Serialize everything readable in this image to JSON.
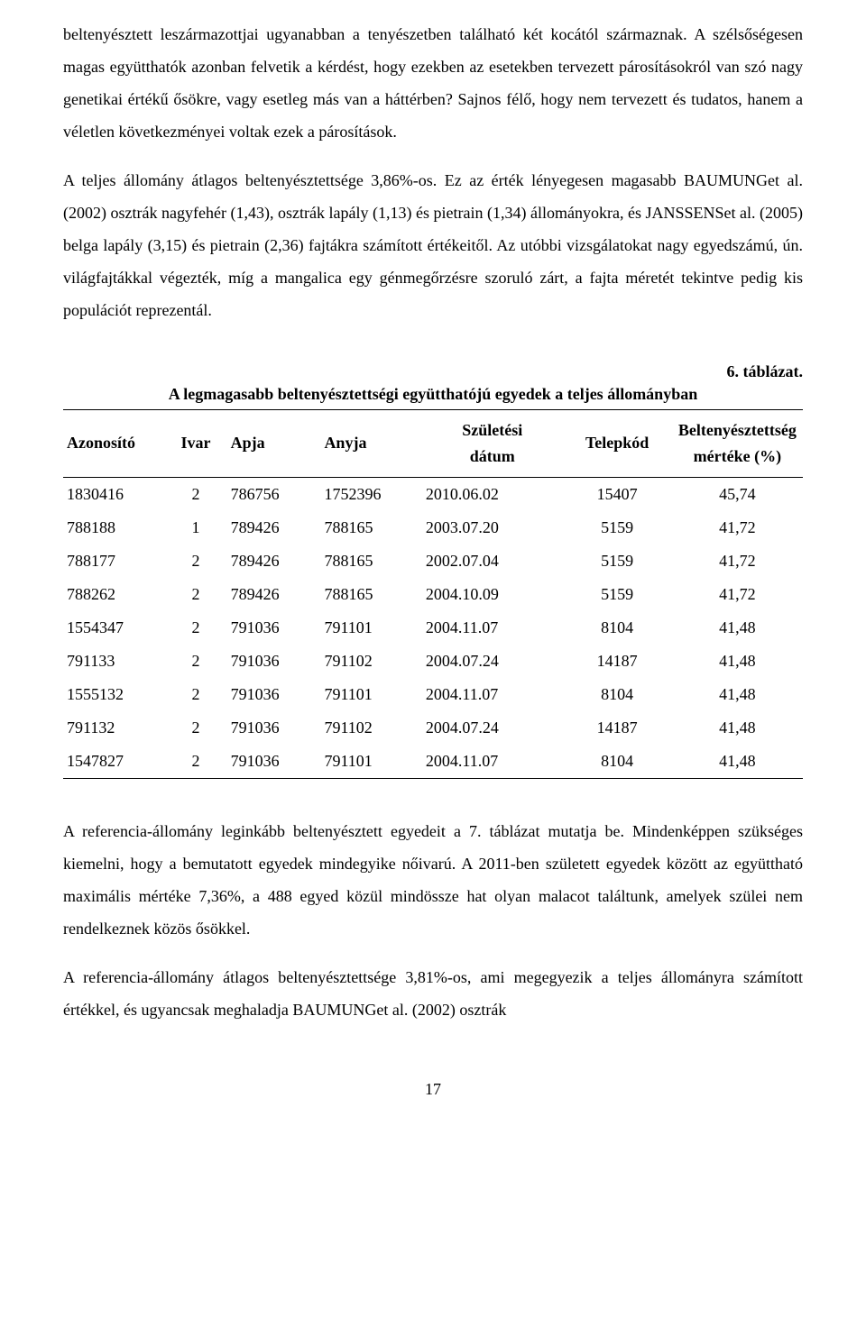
{
  "paragraphs": {
    "p1": "beltenyésztett leszármazottjai ugyanabban a tenyészetben található két kocától származnak. A szélsőségesen magas együtthatók azonban felvetik a kérdést, hogy ezekben az esetekben tervezett párosításokról van szó nagy genetikai értékű ősökre, vagy esetleg más van a háttérben? Sajnos félő, hogy nem tervezett és tudatos, hanem a véletlen következményei voltak ezek a párosítások.",
    "p2": "A teljes állomány átlagos beltenyésztettsége 3,86%-os. Ez az érték lényegesen magasabb BAUMUNGet al. (2002) osztrák nagyfehér (1,43), osztrák lapály (1,13) és pietrain (1,34) állományokra, és JANSSENSet al. (2005) belga lapály (3,15) és pietrain (2,36) fajtákra számított értékeitől. Az utóbbi vizsgálatokat nagy egyedszámú, ún. világfajtákkal végezték, míg a mangalica egy génmegőrzésre szoruló zárt, a fajta méretét tekintve pedig kis populációt reprezentál.",
    "p3": "A referencia-állomány leginkább beltenyésztett egyedeit a 7. táblázat mutatja be. Mindenképpen szükséges kiemelni, hogy a bemutatott egyedek mindegyike nőivarú. A 2011-ben született egyedek között az együttható maximális mértéke 7,36%, a 488 egyed közül mindössze hat olyan malacot találtunk, amelyek szülei nem rendelkeznek közös ősökkel.",
    "p4": "A referencia-állomány átlagos beltenyésztettsége 3,81%-os, ami megegyezik a teljes állományra számított értékkel, és ugyancsak meghaladja BAUMUNGet al. (2002) osztrák"
  },
  "table": {
    "number": "6. táblázat.",
    "title": "A legmagasabb beltenyésztettségi együtthatójú egyedek a teljes állományban",
    "columns": {
      "azonosito": "Azonosító",
      "ivar": "Ivar",
      "apja": "Apja",
      "anyja": "Anyja",
      "szuletesi_l1": "Születési",
      "szuletesi_l2": "dátum",
      "telepkod": "Telepkód",
      "belt_l1": "Beltenyésztettség",
      "belt_l2": "mértéke (%)"
    },
    "rows": [
      [
        "1830416",
        "2",
        "786756",
        "1752396",
        "2010.06.02",
        "15407",
        "45,74"
      ],
      [
        "788188",
        "1",
        "789426",
        "788165",
        "2003.07.20",
        "5159",
        "41,72"
      ],
      [
        "788177",
        "2",
        "789426",
        "788165",
        "2002.07.04",
        "5159",
        "41,72"
      ],
      [
        "788262",
        "2",
        "789426",
        "788165",
        "2004.10.09",
        "5159",
        "41,72"
      ],
      [
        "1554347",
        "2",
        "791036",
        "791101",
        "2004.11.07",
        "8104",
        "41,48"
      ],
      [
        "791133",
        "2",
        "791036",
        "791102",
        "2004.07.24",
        "14187",
        "41,48"
      ],
      [
        "1555132",
        "2",
        "791036",
        "791101",
        "2004.11.07",
        "8104",
        "41,48"
      ],
      [
        "791132",
        "2",
        "791036",
        "791102",
        "2004.07.24",
        "14187",
        "41,48"
      ],
      [
        "1547827",
        "2",
        "791036",
        "791101",
        "2004.11.07",
        "8104",
        "41,48"
      ]
    ]
  },
  "page_number": "17"
}
